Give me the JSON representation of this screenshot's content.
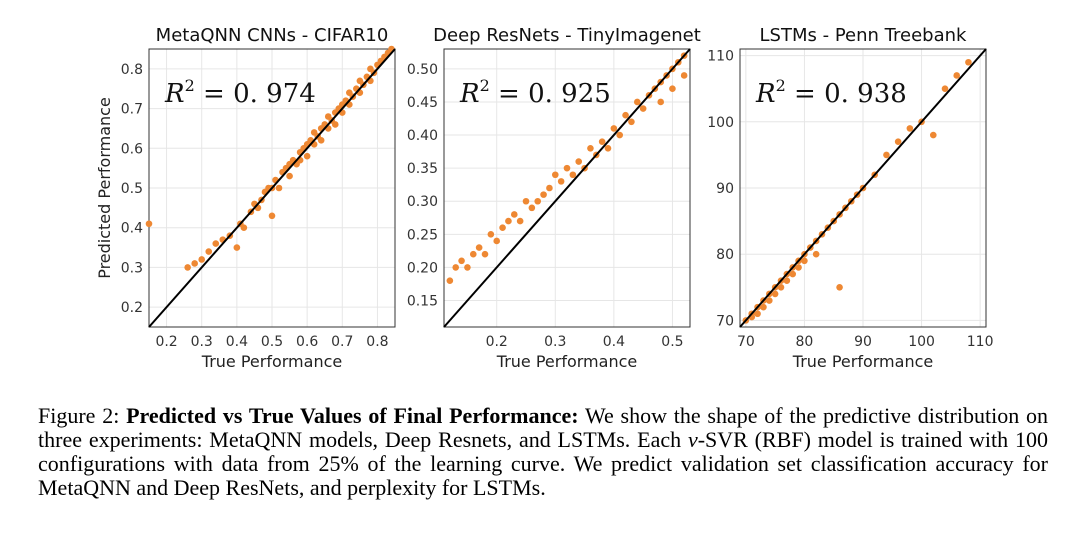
{
  "figure": {
    "ylabel": "Predicted Performance",
    "r2_prefix": "R",
    "r2_sup": "2",
    "r2_eq": " = ",
    "point_color": "#ee8833"
  },
  "chart_data": [
    {
      "type": "scatter",
      "title": "MetaQNN CNNs - CIFAR10",
      "xlabel": "True Performance",
      "ylabel": "Predicted Performance",
      "r2": "0. 974",
      "xlim": [
        0.15,
        0.85
      ],
      "ylim": [
        0.15,
        0.85
      ],
      "xticks": [
        "0.2",
        "0.3",
        "0.4",
        "0.5",
        "0.6",
        "0.7",
        "0.8"
      ],
      "yticks": [
        "0.2",
        "0.3",
        "0.4",
        "0.5",
        "0.6",
        "0.7",
        "0.8"
      ],
      "points": [
        [
          0.15,
          0.41
        ],
        [
          0.26,
          0.3
        ],
        [
          0.28,
          0.31
        ],
        [
          0.3,
          0.32
        ],
        [
          0.32,
          0.34
        ],
        [
          0.34,
          0.36
        ],
        [
          0.36,
          0.37
        ],
        [
          0.38,
          0.38
        ],
        [
          0.4,
          0.35
        ],
        [
          0.41,
          0.41
        ],
        [
          0.42,
          0.4
        ],
        [
          0.44,
          0.44
        ],
        [
          0.45,
          0.46
        ],
        [
          0.46,
          0.45
        ],
        [
          0.47,
          0.47
        ],
        [
          0.48,
          0.49
        ],
        [
          0.49,
          0.5
        ],
        [
          0.5,
          0.43
        ],
        [
          0.5,
          0.5
        ],
        [
          0.51,
          0.52
        ],
        [
          0.52,
          0.5
        ],
        [
          0.53,
          0.54
        ],
        [
          0.54,
          0.55
        ],
        [
          0.55,
          0.56
        ],
        [
          0.55,
          0.53
        ],
        [
          0.56,
          0.57
        ],
        [
          0.57,
          0.56
        ],
        [
          0.58,
          0.59
        ],
        [
          0.58,
          0.57
        ],
        [
          0.59,
          0.6
        ],
        [
          0.6,
          0.61
        ],
        [
          0.6,
          0.58
        ],
        [
          0.61,
          0.62
        ],
        [
          0.62,
          0.61
        ],
        [
          0.62,
          0.64
        ],
        [
          0.63,
          0.63
        ],
        [
          0.64,
          0.65
        ],
        [
          0.64,
          0.62
        ],
        [
          0.65,
          0.66
        ],
        [
          0.66,
          0.65
        ],
        [
          0.66,
          0.68
        ],
        [
          0.67,
          0.67
        ],
        [
          0.68,
          0.69
        ],
        [
          0.68,
          0.66
        ],
        [
          0.69,
          0.7
        ],
        [
          0.7,
          0.71
        ],
        [
          0.7,
          0.69
        ],
        [
          0.71,
          0.72
        ],
        [
          0.72,
          0.71
        ],
        [
          0.72,
          0.74
        ],
        [
          0.73,
          0.73
        ],
        [
          0.74,
          0.75
        ],
        [
          0.75,
          0.74
        ],
        [
          0.75,
          0.77
        ],
        [
          0.76,
          0.76
        ],
        [
          0.77,
          0.78
        ],
        [
          0.78,
          0.77
        ],
        [
          0.78,
          0.8
        ],
        [
          0.79,
          0.79
        ],
        [
          0.8,
          0.81
        ],
        [
          0.81,
          0.82
        ],
        [
          0.82,
          0.83
        ],
        [
          0.83,
          0.84
        ],
        [
          0.84,
          0.85
        ]
      ]
    },
    {
      "type": "scatter",
      "title": "Deep ResNets - TinyImagenet",
      "xlabel": "True Performance",
      "r2": "0. 925",
      "xlim": [
        0.11,
        0.53
      ],
      "ylim": [
        0.11,
        0.53
      ],
      "xticks": [
        "0.2",
        "0.3",
        "0.4",
        "0.5"
      ],
      "yticks": [
        "0.15",
        "0.20",
        "0.25",
        "0.30",
        "0.35",
        "0.40",
        "0.45",
        "0.50"
      ],
      "points": [
        [
          0.12,
          0.18
        ],
        [
          0.13,
          0.2
        ],
        [
          0.14,
          0.21
        ],
        [
          0.15,
          0.2
        ],
        [
          0.16,
          0.22
        ],
        [
          0.17,
          0.23
        ],
        [
          0.18,
          0.22
        ],
        [
          0.19,
          0.25
        ],
        [
          0.2,
          0.24
        ],
        [
          0.21,
          0.26
        ],
        [
          0.22,
          0.27
        ],
        [
          0.23,
          0.28
        ],
        [
          0.24,
          0.27
        ],
        [
          0.25,
          0.3
        ],
        [
          0.26,
          0.29
        ],
        [
          0.27,
          0.3
        ],
        [
          0.28,
          0.31
        ],
        [
          0.29,
          0.32
        ],
        [
          0.3,
          0.34
        ],
        [
          0.31,
          0.33
        ],
        [
          0.32,
          0.35
        ],
        [
          0.33,
          0.34
        ],
        [
          0.34,
          0.36
        ],
        [
          0.35,
          0.35
        ],
        [
          0.36,
          0.38
        ],
        [
          0.37,
          0.37
        ],
        [
          0.38,
          0.39
        ],
        [
          0.39,
          0.38
        ],
        [
          0.4,
          0.41
        ],
        [
          0.41,
          0.4
        ],
        [
          0.42,
          0.43
        ],
        [
          0.43,
          0.42
        ],
        [
          0.44,
          0.45
        ],
        [
          0.45,
          0.44
        ],
        [
          0.46,
          0.46
        ],
        [
          0.47,
          0.47
        ],
        [
          0.48,
          0.48
        ],
        [
          0.48,
          0.45
        ],
        [
          0.49,
          0.49
        ],
        [
          0.5,
          0.5
        ],
        [
          0.5,
          0.47
        ],
        [
          0.51,
          0.51
        ],
        [
          0.52,
          0.52
        ],
        [
          0.52,
          0.49
        ]
      ]
    },
    {
      "type": "scatter",
      "title": "LSTMs - Penn Treebank",
      "xlabel": "True Performance",
      "r2": "0. 938",
      "xlim": [
        69,
        111
      ],
      "ylim": [
        69,
        111
      ],
      "xticks": [
        "70",
        "80",
        "90",
        "100",
        "110"
      ],
      "yticks": [
        "70",
        "80",
        "90",
        "100",
        "110"
      ],
      "points": [
        [
          70,
          70
        ],
        [
          71,
          71
        ],
        [
          71,
          70.5
        ],
        [
          72,
          72
        ],
        [
          72,
          71
        ],
        [
          73,
          73
        ],
        [
          73,
          72
        ],
        [
          74,
          74
        ],
        [
          74,
          73
        ],
        [
          75,
          75
        ],
        [
          75,
          74
        ],
        [
          76,
          76
        ],
        [
          76,
          75
        ],
        [
          77,
          77
        ],
        [
          77,
          76
        ],
        [
          78,
          78
        ],
        [
          78,
          77
        ],
        [
          79,
          79
        ],
        [
          79,
          78
        ],
        [
          80,
          80
        ],
        [
          80,
          79
        ],
        [
          81,
          81
        ],
        [
          82,
          82
        ],
        [
          82,
          80
        ],
        [
          83,
          83
        ],
        [
          84,
          84
        ],
        [
          85,
          85
        ],
        [
          86,
          75
        ],
        [
          86,
          86
        ],
        [
          87,
          87
        ],
        [
          88,
          88
        ],
        [
          89,
          89
        ],
        [
          90,
          90
        ],
        [
          92,
          92
        ],
        [
          94,
          95
        ],
        [
          96,
          97
        ],
        [
          98,
          99
        ],
        [
          100,
          100
        ],
        [
          102,
          98
        ],
        [
          104,
          105
        ],
        [
          106,
          107
        ],
        [
          108,
          109
        ]
      ]
    }
  ],
  "caption": {
    "lead": "Figure 2: ",
    "bold": "Predicted vs True Values of Final Performance:",
    "text1": " We show the shape of the predictive distribution on three experiments: MetaQNN models, Deep Resnets, and LSTMs. Each ",
    "nu": "ν",
    "text2": "-SVR (RBF) model is trained with 100 configurations with data from 25% of the learning curve. We predict validation set classification accuracy for MetaQNN and Deep ResNets, and perplexity for LSTMs."
  }
}
